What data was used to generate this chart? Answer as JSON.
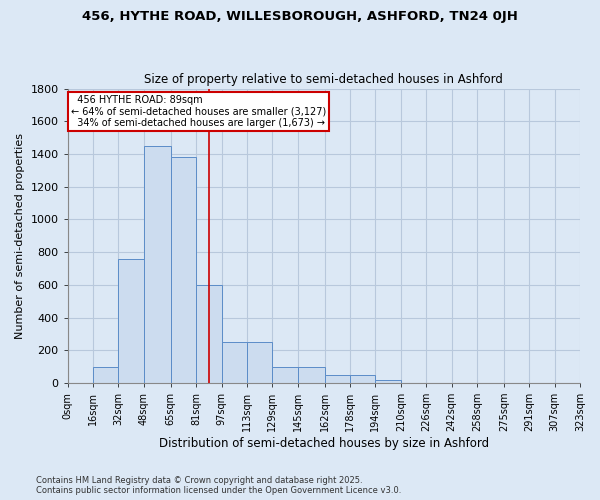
{
  "title_line1": "456, HYTHE ROAD, WILLESBOROUGH, ASHFORD, TN24 0JH",
  "title_line2": "Size of property relative to semi-detached houses in Ashford",
  "xlabel": "Distribution of semi-detached houses by size in Ashford",
  "ylabel": "Number of semi-detached properties",
  "footer_line1": "Contains HM Land Registry data © Crown copyright and database right 2025.",
  "footer_line2": "Contains public sector information licensed under the Open Government Licence v3.0.",
  "bin_labels": [
    "0sqm",
    "16sqm",
    "32sqm",
    "48sqm",
    "65sqm",
    "81sqm",
    "97sqm",
    "113sqm",
    "129sqm",
    "145sqm",
    "162sqm",
    "178sqm",
    "194sqm",
    "210sqm",
    "226sqm",
    "242sqm",
    "258sqm",
    "275sqm",
    "291sqm",
    "307sqm",
    "323sqm"
  ],
  "bin_edges_num": [
    0,
    16,
    32,
    48,
    65,
    81,
    97,
    113,
    129,
    145,
    162,
    178,
    194,
    210,
    226,
    242,
    258,
    275,
    291,
    307,
    323
  ],
  "values": [
    0,
    100,
    760,
    1450,
    1380,
    600,
    250,
    250,
    100,
    100,
    50,
    50,
    20,
    0,
    0,
    0,
    0,
    0,
    0,
    0
  ],
  "bar_color": "#ccdcef",
  "bar_edge_color": "#5b8cc8",
  "grid_color": "#b8c8dc",
  "background_color": "#dce8f5",
  "property_size": 89,
  "property_label": "456 HYTHE ROAD: 89sqm",
  "pct_smaller": 64,
  "count_smaller": 3127,
  "pct_larger": 34,
  "count_larger": 1673,
  "annotation_box_color": "#ffffff",
  "annotation_box_edge_color": "#cc0000",
  "vline_color": "#cc0000",
  "ylim": [
    0,
    1800
  ],
  "yticks": [
    0,
    200,
    400,
    600,
    800,
    1000,
    1200,
    1400,
    1600,
    1800
  ]
}
